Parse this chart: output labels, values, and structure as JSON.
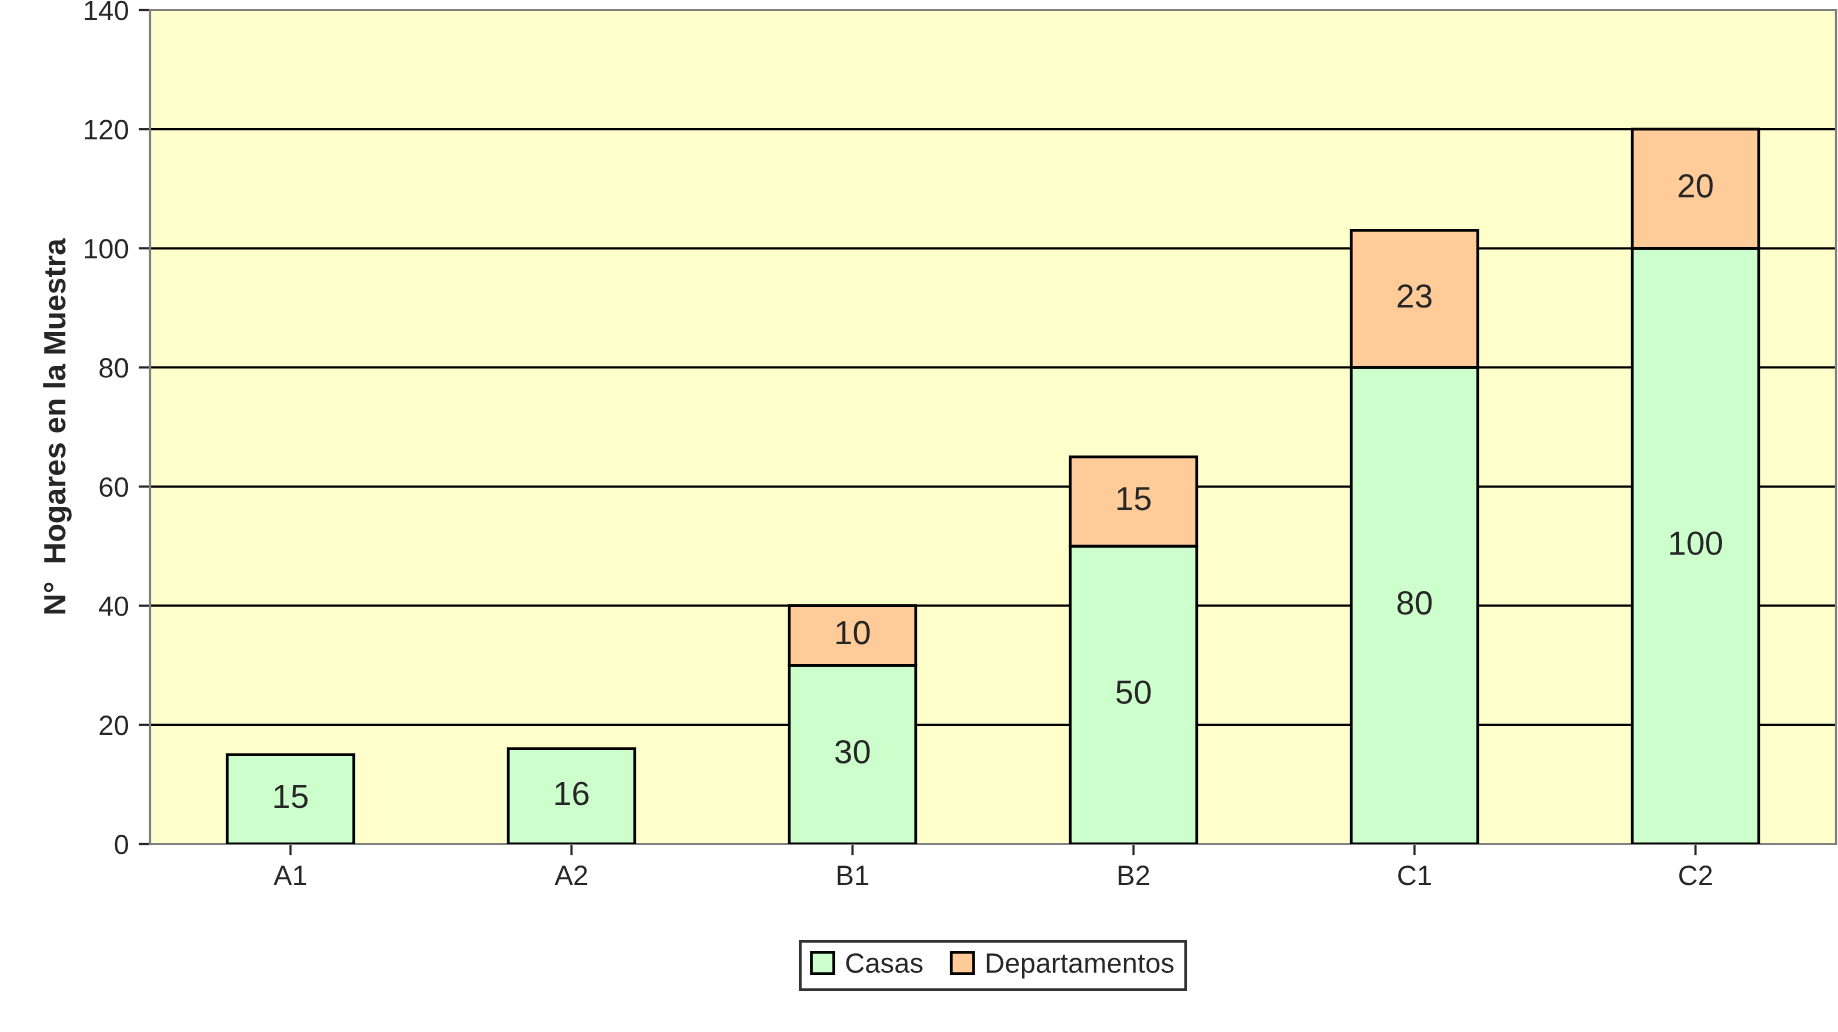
{
  "chart_data": {
    "type": "bar",
    "stacked": true,
    "ylabel": "N°  Hogares en la Muestra",
    "categories": [
      "A1",
      "A2",
      "B1",
      "B2",
      "C1",
      "C2"
    ],
    "series": [
      {
        "name": "Casas",
        "color": "#ccffcc",
        "values": [
          15,
          16,
          30,
          50,
          80,
          100
        ],
        "value_labels": [
          "15",
          "16",
          "30",
          "50",
          "80",
          "100"
        ]
      },
      {
        "name": "Departamentos",
        "color": "#ffcc99",
        "values": [
          null,
          null,
          10,
          15,
          23,
          20
        ],
        "value_labels": [
          null,
          null,
          "10",
          "15",
          "23",
          "20"
        ]
      }
    ],
    "ylim": [
      0,
      140
    ],
    "yticks": [
      0,
      20,
      40,
      60,
      80,
      100,
      120,
      140
    ],
    "grid": "y",
    "legend": "bottom"
  }
}
